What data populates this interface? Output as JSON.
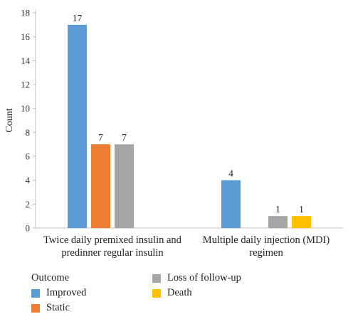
{
  "chart_data": {
    "type": "bar",
    "categories": [
      [
        "Twice daily premixed insulin and",
        "predinner regular insulin"
      ],
      [
        "Multiple daily injection (MDI)",
        "regimen"
      ]
    ],
    "series": [
      {
        "name": "Improved",
        "color": "#5b9bd5",
        "values": [
          17,
          4
        ]
      },
      {
        "name": "Static",
        "color": "#ed7d31",
        "values": [
          7,
          0
        ]
      },
      {
        "name": "Loss of follow-up",
        "color": "#a5a5a5",
        "values": [
          7,
          1
        ]
      },
      {
        "name": "Death",
        "color": "#ffc000",
        "values": [
          0,
          1
        ]
      }
    ],
    "ylabel": "Count",
    "xlabel": "",
    "ylim": [
      0,
      18
    ],
    "yticks": [
      0,
      2,
      4,
      6,
      8,
      10,
      12,
      14,
      16,
      18
    ],
    "data_labels": true,
    "grid": false,
    "legend_title": "Outcome",
    "legend_position": "bottom-left"
  }
}
